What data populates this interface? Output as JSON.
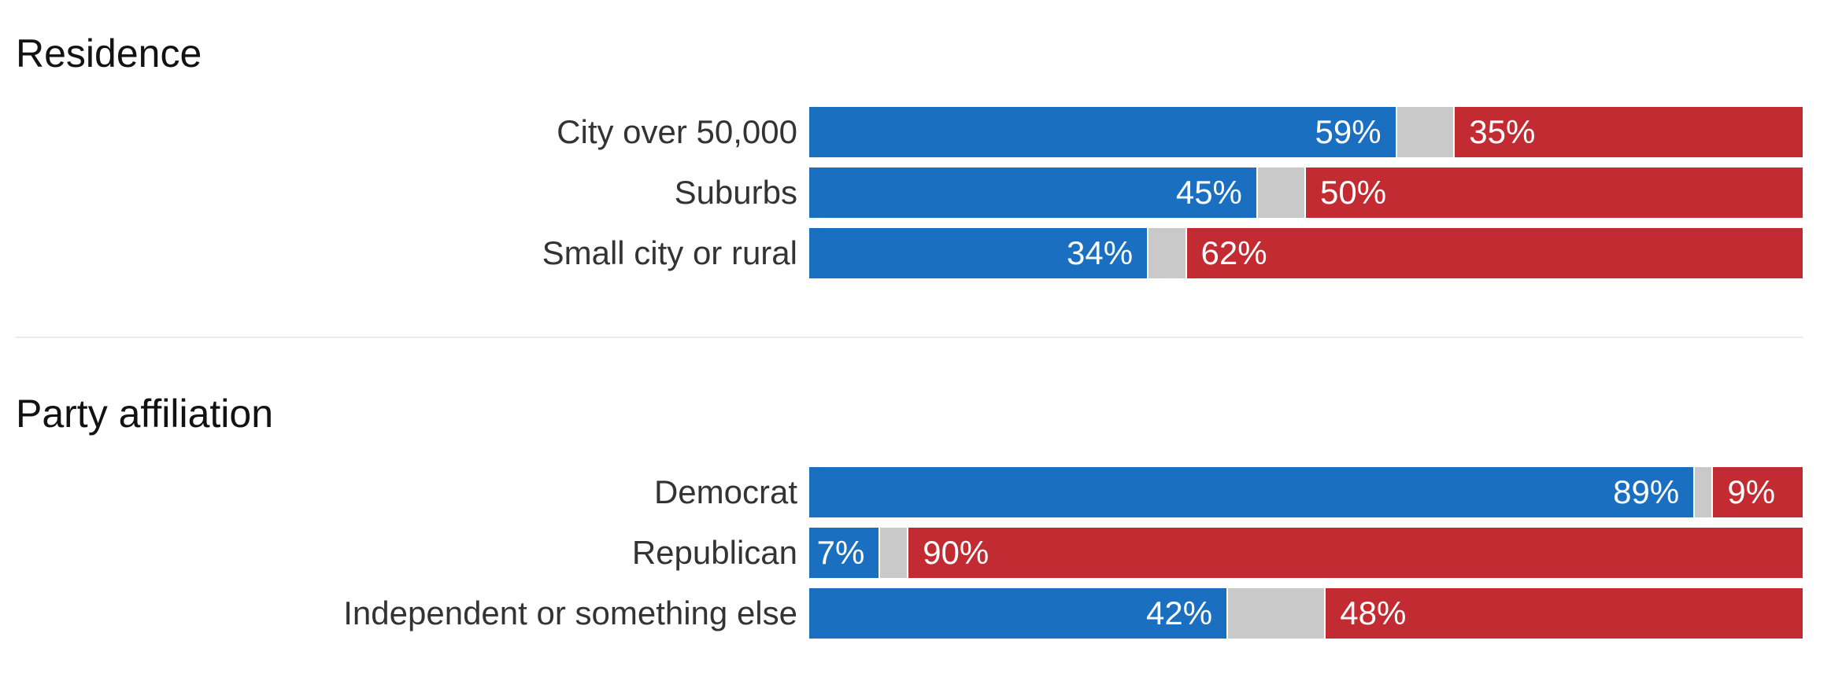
{
  "colors": {
    "democrat": "#1a6fc1",
    "other": "#c9c9c9",
    "republican": "#c32b33"
  },
  "chart_data": [
    {
      "type": "bar",
      "stacked": true,
      "orientation": "horizontal",
      "title": "Residence",
      "categories": [
        "City over 50,000",
        "Suburbs",
        "Small city or rural"
      ],
      "series": [
        {
          "values": [
            59,
            45,
            34
          ],
          "labels": [
            "59%",
            "45%",
            "34%"
          ],
          "color": "#1a6fc1"
        },
        {
          "values": [
            6,
            5,
            4
          ],
          "color": "#c9c9c9"
        },
        {
          "values": [
            35,
            50,
            62
          ],
          "labels": [
            "35%",
            "50%",
            "62%"
          ],
          "color": "#c32b33"
        }
      ],
      "xlim": [
        0,
        100
      ]
    },
    {
      "type": "bar",
      "stacked": true,
      "orientation": "horizontal",
      "title": "Party affiliation",
      "categories": [
        "Democrat",
        "Republican",
        "Independent or something else"
      ],
      "series": [
        {
          "values": [
            89,
            7,
            42
          ],
          "labels": [
            "89%",
            "7%",
            "42%"
          ],
          "color": "#1a6fc1"
        },
        {
          "values": [
            2,
            3,
            10
          ],
          "color": "#c9c9c9"
        },
        {
          "values": [
            9,
            90,
            48
          ],
          "labels": [
            "9%",
            "90%",
            "48%"
          ],
          "color": "#c32b33"
        }
      ],
      "xlim": [
        0,
        100
      ]
    }
  ]
}
